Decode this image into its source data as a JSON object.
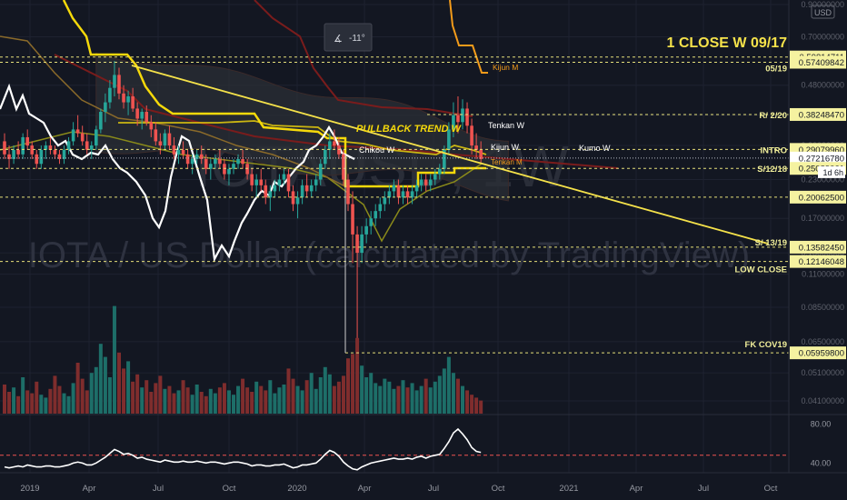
{
  "chart_data": {
    "type": "line",
    "title": "IOTA / US Dollar (calculated by TradingView)",
    "watermark_symbol": "IOTAUSD, 1W",
    "currency": "USD",
    "y_scale": "log",
    "ylim": [
      0.039,
      0.9
    ],
    "price_ticks": [
      "0.90000000",
      "0.70000000",
      "0.48000000",
      "0.38000000",
      "0.30000000",
      "0.23000000",
      "0.17000000",
      "0.13000000",
      "0.11000000",
      "0.08500000",
      "0.06500000",
      "0.05100000",
      "0.04100000"
    ],
    "x_ticks": [
      "2019",
      "Apr",
      "Jul",
      "Oct",
      "2020",
      "Apr",
      "Jul",
      "Oct",
      "2021",
      "Apr",
      "Jul",
      "Oct"
    ],
    "countdown": "1d 6h",
    "angle_tool": "-11°",
    "headline": "1 CLOSE W 09/17",
    "levels": [
      {
        "label": "05/19",
        "price_text": "0.59814711",
        "value": 0.598
      },
      {
        "label": "",
        "price_text": "0.57409842",
        "value": 0.574
      },
      {
        "label": "R/ 2/20",
        "price_text": "0.38248470",
        "value": 0.382
      },
      {
        "label": "INTRO",
        "price_text": "0.29079960",
        "value": 0.291
      },
      {
        "label": "",
        "price_text": "0.27216780",
        "value": 0.272
      },
      {
        "label": "S/12/18",
        "price_text": "0.25089061",
        "value": 0.251
      },
      {
        "label": "",
        "price_text": "0.20062500",
        "value": 0.2006
      },
      {
        "label": "S/ 13/19",
        "price_text": "0.13582450",
        "value": 0.1358
      },
      {
        "label": "LOW CLOSE",
        "price_text": "0.12146048",
        "value": 0.1215
      },
      {
        "label": "FK COV19",
        "price_text": "0.05959800",
        "value": 0.0596
      }
    ],
    "annotations": [
      "PULLBACK TREND W",
      "Tenkan W",
      "Kijun W",
      "Kumo W",
      "Chikou W",
      "Kijun M",
      "Tenkan M"
    ],
    "candles": [
      [
        0.31,
        0.33,
        0.27,
        0.28
      ],
      [
        0.28,
        0.3,
        0.25,
        0.27
      ],
      [
        0.27,
        0.3,
        0.26,
        0.29
      ],
      [
        0.29,
        0.31,
        0.27,
        0.28
      ],
      [
        0.28,
        0.33,
        0.27,
        0.32
      ],
      [
        0.32,
        0.34,
        0.29,
        0.3
      ],
      [
        0.3,
        0.31,
        0.27,
        0.28
      ],
      [
        0.28,
        0.29,
        0.25,
        0.26
      ],
      [
        0.26,
        0.3,
        0.25,
        0.29
      ],
      [
        0.29,
        0.31,
        0.27,
        0.3
      ],
      [
        0.3,
        0.32,
        0.28,
        0.29
      ],
      [
        0.29,
        0.3,
        0.27,
        0.28
      ],
      [
        0.28,
        0.29,
        0.26,
        0.27
      ],
      [
        0.27,
        0.3,
        0.26,
        0.29
      ],
      [
        0.29,
        0.32,
        0.28,
        0.31
      ],
      [
        0.31,
        0.36,
        0.3,
        0.34
      ],
      [
        0.34,
        0.38,
        0.32,
        0.33
      ],
      [
        0.33,
        0.35,
        0.3,
        0.31
      ],
      [
        0.31,
        0.33,
        0.28,
        0.29
      ],
      [
        0.29,
        0.31,
        0.27,
        0.3
      ],
      [
        0.3,
        0.35,
        0.29,
        0.34
      ],
      [
        0.34,
        0.4,
        0.33,
        0.39
      ],
      [
        0.39,
        0.45,
        0.36,
        0.42
      ],
      [
        0.42,
        0.5,
        0.4,
        0.47
      ],
      [
        0.47,
        0.58,
        0.44,
        0.52
      ],
      [
        0.52,
        0.55,
        0.43,
        0.45
      ],
      [
        0.45,
        0.48,
        0.4,
        0.42
      ],
      [
        0.42,
        0.46,
        0.38,
        0.44
      ],
      [
        0.44,
        0.47,
        0.39,
        0.4
      ],
      [
        0.4,
        0.42,
        0.35,
        0.37
      ],
      [
        0.37,
        0.4,
        0.34,
        0.39
      ],
      [
        0.39,
        0.41,
        0.35,
        0.36
      ],
      [
        0.36,
        0.38,
        0.32,
        0.34
      ],
      [
        0.34,
        0.36,
        0.3,
        0.31
      ],
      [
        0.31,
        0.33,
        0.28,
        0.3
      ],
      [
        0.3,
        0.34,
        0.29,
        0.33
      ],
      [
        0.33,
        0.35,
        0.29,
        0.3
      ],
      [
        0.3,
        0.32,
        0.27,
        0.28
      ],
      [
        0.28,
        0.3,
        0.26,
        0.29
      ],
      [
        0.29,
        0.31,
        0.27,
        0.28
      ],
      [
        0.28,
        0.29,
        0.25,
        0.26
      ],
      [
        0.26,
        0.28,
        0.24,
        0.27
      ],
      [
        0.27,
        0.29,
        0.26,
        0.28
      ],
      [
        0.28,
        0.3,
        0.26,
        0.27
      ],
      [
        0.27,
        0.28,
        0.24,
        0.25
      ],
      [
        0.25,
        0.27,
        0.23,
        0.26
      ],
      [
        0.26,
        0.28,
        0.25,
        0.27
      ],
      [
        0.27,
        0.29,
        0.25,
        0.26
      ],
      [
        0.26,
        0.27,
        0.23,
        0.24
      ],
      [
        0.24,
        0.26,
        0.22,
        0.25
      ],
      [
        0.25,
        0.27,
        0.24,
        0.26
      ],
      [
        0.26,
        0.28,
        0.25,
        0.27
      ],
      [
        0.27,
        0.29,
        0.25,
        0.26
      ],
      [
        0.26,
        0.27,
        0.23,
        0.24
      ],
      [
        0.24,
        0.25,
        0.21,
        0.22
      ],
      [
        0.22,
        0.24,
        0.2,
        0.23
      ],
      [
        0.23,
        0.25,
        0.21,
        0.22
      ],
      [
        0.22,
        0.23,
        0.19,
        0.2
      ],
      [
        0.2,
        0.22,
        0.18,
        0.21
      ],
      [
        0.21,
        0.23,
        0.2,
        0.22
      ],
      [
        0.22,
        0.24,
        0.21,
        0.23
      ],
      [
        0.23,
        0.25,
        0.22,
        0.24
      ],
      [
        0.24,
        0.25,
        0.2,
        0.21
      ],
      [
        0.21,
        0.22,
        0.18,
        0.19
      ],
      [
        0.19,
        0.21,
        0.17,
        0.2
      ],
      [
        0.2,
        0.23,
        0.19,
        0.22
      ],
      [
        0.22,
        0.24,
        0.2,
        0.21
      ],
      [
        0.21,
        0.23,
        0.2,
        0.22
      ],
      [
        0.22,
        0.24,
        0.21,
        0.23
      ],
      [
        0.23,
        0.27,
        0.22,
        0.26
      ],
      [
        0.26,
        0.3,
        0.25,
        0.29
      ],
      [
        0.29,
        0.33,
        0.27,
        0.31
      ],
      [
        0.31,
        0.34,
        0.29,
        0.3
      ],
      [
        0.3,
        0.32,
        0.27,
        0.28
      ],
      [
        0.28,
        0.29,
        0.22,
        0.23
      ],
      [
        0.23,
        0.24,
        0.18,
        0.19
      ],
      [
        0.19,
        0.21,
        0.12,
        0.15
      ],
      [
        0.15,
        0.16,
        0.0596,
        0.13
      ],
      [
        0.13,
        0.16,
        0.12,
        0.15
      ],
      [
        0.15,
        0.17,
        0.14,
        0.16
      ],
      [
        0.16,
        0.18,
        0.15,
        0.17
      ],
      [
        0.17,
        0.19,
        0.16,
        0.18
      ],
      [
        0.18,
        0.2,
        0.17,
        0.19
      ],
      [
        0.19,
        0.21,
        0.18,
        0.2
      ],
      [
        0.2,
        0.22,
        0.19,
        0.21
      ],
      [
        0.21,
        0.23,
        0.2,
        0.22
      ],
      [
        0.22,
        0.23,
        0.19,
        0.2
      ],
      [
        0.2,
        0.22,
        0.19,
        0.21
      ],
      [
        0.21,
        0.22,
        0.19,
        0.2
      ],
      [
        0.2,
        0.22,
        0.19,
        0.21
      ],
      [
        0.21,
        0.23,
        0.2,
        0.22
      ],
      [
        0.22,
        0.24,
        0.21,
        0.23
      ],
      [
        0.23,
        0.24,
        0.21,
        0.22
      ],
      [
        0.22,
        0.24,
        0.21,
        0.23
      ],
      [
        0.23,
        0.25,
        0.22,
        0.24
      ],
      [
        0.24,
        0.26,
        0.23,
        0.25
      ],
      [
        0.25,
        0.3,
        0.24,
        0.29
      ],
      [
        0.29,
        0.36,
        0.28,
        0.34
      ],
      [
        0.34,
        0.42,
        0.32,
        0.38
      ],
      [
        0.38,
        0.44,
        0.33,
        0.36
      ],
      [
        0.36,
        0.43,
        0.34,
        0.4
      ],
      [
        0.4,
        0.42,
        0.33,
        0.35
      ],
      [
        0.35,
        0.37,
        0.28,
        0.3
      ],
      [
        0.3,
        0.33,
        0.27,
        0.29
      ],
      [
        0.29,
        0.31,
        0.26,
        0.27
      ]
    ],
    "volume": [
      2,
      1.5,
      1.8,
      1.2,
      2.5,
      1.6,
      1.4,
      2.2,
      1.3,
      1.1,
      1.7,
      2.6,
      1.9,
      1.4,
      1.2,
      2.1,
      3.5,
      2.4,
      1.6,
      2.8,
      3.2,
      4.8,
      3.9,
      2.5,
      7.4,
      4.2,
      3.1,
      3.6,
      2.2,
      2.7,
      1.8,
      2.3,
      1.5,
      2.1,
      2.6,
      1.7,
      1.9,
      1.4,
      1.6,
      2.3,
      1.8,
      1.3,
      2.0,
      1.5,
      1.2,
      1.7,
      1.4,
      1.8,
      2.1,
      1.6,
      1.3,
      1.9,
      2.4,
      1.8,
      1.5,
      2.2,
      1.9,
      1.6,
      2.3,
      1.4,
      1.8,
      2.0,
      3.1,
      2.4,
      1.9,
      1.6,
      2.3,
      2.8,
      1.7,
      2.5,
      3.2,
      2.7,
      1.9,
      2.2,
      2.6,
      3.8,
      4.1,
      5.2,
      3.3,
      2.5,
      2.8,
      2.1,
      1.9,
      2.4,
      2.2,
      1.7,
      1.9,
      2.3,
      1.8,
      2.1,
      1.6,
      1.9,
      2.4,
      1.8,
      2.2,
      2.6,
      3.1,
      3.9,
      2.8,
      2.4,
      1.9,
      1.6,
      1.3,
      1.1,
      0.9
    ],
    "indicator": {
      "ticks": [
        "80.00",
        "40.00"
      ],
      "ylim": [
        30,
        90
      ],
      "values": [
        36,
        35,
        36,
        37,
        36,
        38,
        37,
        36,
        36,
        37,
        37,
        36,
        36,
        37,
        38,
        40,
        41,
        40,
        38,
        38,
        40,
        43,
        46,
        50,
        54,
        52,
        49,
        50,
        48,
        45,
        46,
        44,
        43,
        42,
        41,
        43,
        42,
        41,
        41,
        42,
        41,
        41,
        42,
        41,
        40,
        41,
        41,
        40,
        39,
        40,
        41,
        41,
        40,
        39,
        37,
        38,
        38,
        37,
        37,
        38,
        38,
        39,
        37,
        35,
        36,
        38,
        38,
        39,
        40,
        44,
        49,
        53,
        51,
        47,
        41,
        37,
        34,
        33,
        36,
        38,
        40,
        41,
        42,
        43,
        44,
        45,
        44,
        44,
        45,
        44,
        46,
        47,
        45,
        47,
        48,
        49,
        55,
        62,
        71,
        75,
        70,
        64,
        56,
        52,
        51
      ],
      "reference": 48
    }
  }
}
